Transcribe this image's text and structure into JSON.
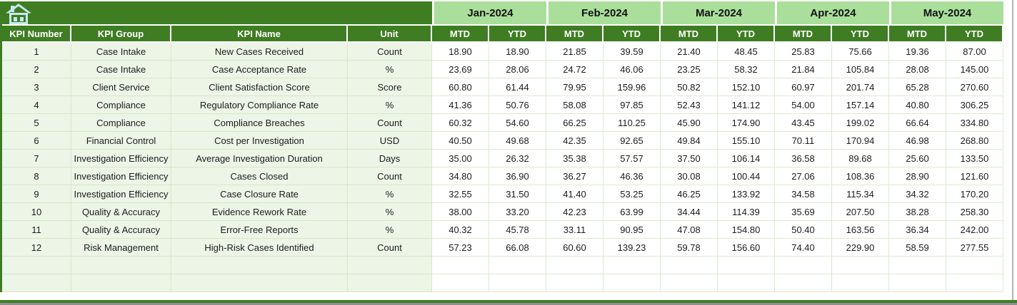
{
  "colors": {
    "dark_green": "#3E7D22",
    "light_green": "#A9DF9A",
    "pale_green": "#EDF5E7",
    "grid_line": "#DCEAD0",
    "home_icon": "#C9E8F3"
  },
  "header": {
    "months": [
      "Jan-2024",
      "Feb-2024",
      "Mar-2024",
      "Apr-2024",
      "May-2024"
    ],
    "sub": [
      "MTD",
      "YTD"
    ],
    "left": [
      "KPI Number",
      "KPI Group",
      "KPI Name",
      "Unit"
    ]
  },
  "rows": [
    {
      "number": "1",
      "group": "Case Intake",
      "name": "New Cases Received",
      "unit": "Count",
      "values": [
        "18.90",
        "18.90",
        "21.85",
        "39.59",
        "21.40",
        "48.45",
        "25.83",
        "75.66",
        "19.36",
        "87.00"
      ]
    },
    {
      "number": "2",
      "group": "Case Intake",
      "name": "Case Acceptance Rate",
      "unit": "%",
      "values": [
        "23.69",
        "28.06",
        "24.72",
        "46.06",
        "23.25",
        "58.32",
        "21.84",
        "105.84",
        "28.08",
        "145.00"
      ]
    },
    {
      "number": "3",
      "group": "Client Service",
      "name": "Client Satisfaction Score",
      "unit": "Score",
      "values": [
        "60.80",
        "61.44",
        "79.95",
        "159.96",
        "50.82",
        "152.10",
        "60.97",
        "201.74",
        "65.28",
        "270.60"
      ]
    },
    {
      "number": "4",
      "group": "Compliance",
      "name": "Regulatory Compliance Rate",
      "unit": "%",
      "values": [
        "41.36",
        "50.76",
        "58.08",
        "97.85",
        "52.43",
        "141.12",
        "54.00",
        "157.14",
        "40.80",
        "306.25"
      ]
    },
    {
      "number": "5",
      "group": "Compliance",
      "name": "Compliance Breaches",
      "unit": "Count",
      "values": [
        "60.32",
        "54.60",
        "66.25",
        "110.25",
        "45.90",
        "174.90",
        "43.45",
        "199.02",
        "66.64",
        "334.80"
      ]
    },
    {
      "number": "6",
      "group": "Financial Control",
      "name": "Cost per Investigation",
      "unit": "USD",
      "values": [
        "40.50",
        "49.68",
        "42.35",
        "92.65",
        "49.84",
        "155.10",
        "70.11",
        "170.94",
        "46.98",
        "268.80"
      ]
    },
    {
      "number": "7",
      "group": "Investigation Efficiency",
      "name": "Average Investigation Duration",
      "unit": "Days",
      "values": [
        "35.00",
        "26.32",
        "35.38",
        "57.57",
        "37.50",
        "106.14",
        "36.58",
        "89.68",
        "25.60",
        "133.50"
      ]
    },
    {
      "number": "8",
      "group": "Investigation Efficiency",
      "name": "Cases Closed",
      "unit": "Count",
      "values": [
        "34.80",
        "36.90",
        "36.27",
        "46.36",
        "30.08",
        "100.44",
        "27.06",
        "108.36",
        "28.90",
        "121.60"
      ]
    },
    {
      "number": "9",
      "group": "Investigation Efficiency",
      "name": "Case Closure Rate",
      "unit": "%",
      "values": [
        "32.55",
        "31.50",
        "41.40",
        "53.25",
        "46.25",
        "133.92",
        "34.58",
        "115.34",
        "34.32",
        "170.20"
      ]
    },
    {
      "number": "10",
      "group": "Quality & Accuracy",
      "name": "Evidence Rework Rate",
      "unit": "%",
      "values": [
        "38.00",
        "33.20",
        "42.23",
        "63.99",
        "34.44",
        "114.39",
        "35.69",
        "207.50",
        "38.28",
        "258.30"
      ]
    },
    {
      "number": "11",
      "group": "Quality & Accuracy",
      "name": "Error-Free Reports",
      "unit": "%",
      "values": [
        "40.32",
        "45.78",
        "33.11",
        "90.95",
        "47.08",
        "154.80",
        "50.40",
        "163.56",
        "36.34",
        "242.00"
      ]
    },
    {
      "number": "12",
      "group": "Risk Management",
      "name": "High-Risk Cases Identified",
      "unit": "Count",
      "values": [
        "57.23",
        "66.08",
        "60.60",
        "139.23",
        "59.78",
        "156.60",
        "74.40",
        "229.90",
        "58.59",
        "277.55"
      ]
    }
  ],
  "empty_row_count": 2
}
